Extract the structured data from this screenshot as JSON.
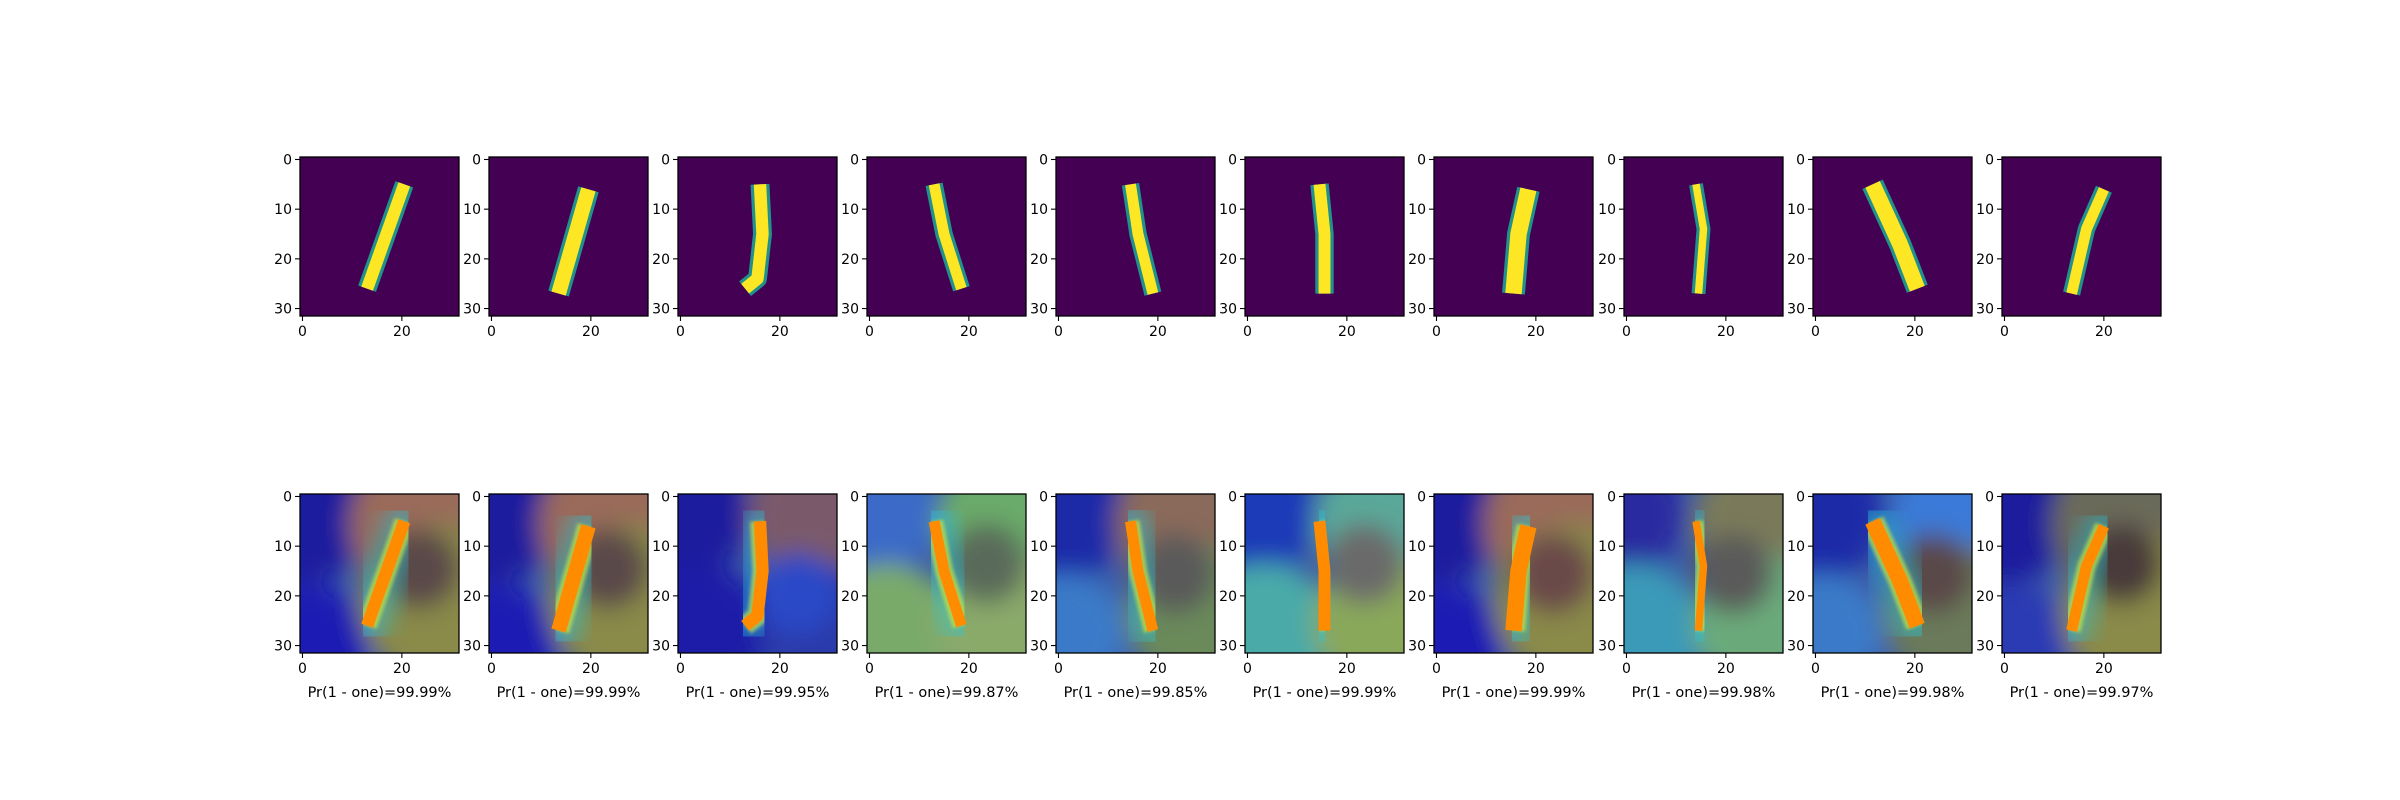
{
  "chart_data": {
    "type": "image-grid",
    "rows": 2,
    "columns": 10,
    "x_ticks": [
      "0",
      "20"
    ],
    "y_ticks": [
      "0",
      "10",
      "20",
      "30"
    ],
    "image_size": 32,
    "colormap_top": "viridis",
    "colormap_bottom": "jet-overlay",
    "colors": {
      "background_top": "#440154",
      "digit_top": "#fde725",
      "edge_top": "#21918c",
      "overlay_stroke": "#ff8c00"
    },
    "digits": [
      {
        "pts": [
          [
            20.5,
            5
          ],
          [
            13,
            26
          ]
        ],
        "w": 2.5
      },
      {
        "pts": [
          [
            19.5,
            6
          ],
          [
            13.5,
            27
          ]
        ],
        "w": 3.0
      },
      {
        "pts": [
          [
            16,
            5
          ],
          [
            16.5,
            15
          ],
          [
            15.5,
            24
          ],
          [
            13,
            26
          ]
        ],
        "w": 2.5
      },
      {
        "pts": [
          [
            13,
            5
          ],
          [
            15,
            15
          ],
          [
            18.5,
            26
          ]
        ],
        "w": 2.2
      },
      {
        "pts": [
          [
            14.5,
            5
          ],
          [
            16,
            15
          ],
          [
            19,
            27
          ]
        ],
        "w": 2.2
      },
      {
        "pts": [
          [
            14.5,
            5
          ],
          [
            15.5,
            15
          ],
          [
            15.5,
            27
          ]
        ],
        "w": 2.4
      },
      {
        "pts": [
          [
            18.5,
            6
          ],
          [
            16.5,
            15
          ],
          [
            15.5,
            27
          ]
        ],
        "w": 3.3
      },
      {
        "pts": [
          [
            14,
            5
          ],
          [
            15.5,
            14
          ],
          [
            14.5,
            27
          ]
        ],
        "w": 1.5
      },
      {
        "pts": [
          [
            11.5,
            5
          ],
          [
            17,
            17
          ],
          [
            20.5,
            26
          ]
        ],
        "w": 3.2
      },
      {
        "pts": [
          [
            20,
            6
          ],
          [
            16.5,
            14
          ],
          [
            13.5,
            27
          ]
        ],
        "w": 2.2
      }
    ],
    "captions": [
      "Pr(1 - one)=99.99%",
      "Pr(1 - one)=99.99%",
      "Pr(1 - one)=99.95%",
      "Pr(1 - one)=99.87%",
      "Pr(1 - one)=99.85%",
      "Pr(1 - one)=99.99%",
      "Pr(1 - one)=99.99%",
      "Pr(1 - one)=99.98%",
      "Pr(1 - one)=99.98%",
      "Pr(1 - one)=99.97%"
    ]
  }
}
